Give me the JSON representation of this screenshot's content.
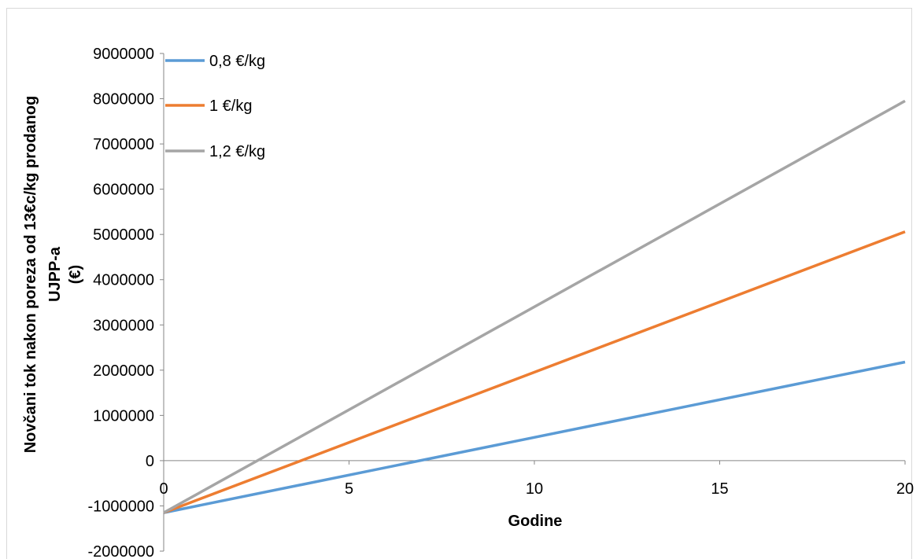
{
  "chart_data": {
    "type": "line",
    "title": "",
    "xlabel": "Godine",
    "ylabel_lines": [
      "Novčani tok nakon poreza od 13€c/kg prodanog",
      "UJPP-a",
      "(€)"
    ],
    "xlim": [
      0,
      20
    ],
    "ylim": [
      -2000000,
      9000000
    ],
    "x_ticks": [
      0,
      5,
      10,
      15,
      20
    ],
    "y_ticks": [
      -2000000,
      -1000000,
      0,
      1000000,
      2000000,
      3000000,
      4000000,
      5000000,
      6000000,
      7000000,
      8000000,
      9000000
    ],
    "grid": false,
    "legend_position": "top-left",
    "series": [
      {
        "name": "0,8 €/kg",
        "color": "#5B9BD5",
        "x": [
          0,
          20
        ],
        "y": [
          -1150000,
          2180000
        ]
      },
      {
        "name": "1 €/kg",
        "color": "#ED7D31",
        "x": [
          0,
          20
        ],
        "y": [
          -1150000,
          5060000
        ]
      },
      {
        "name": "1,2 €/kg",
        "color": "#A5A5A5",
        "x": [
          0,
          20
        ],
        "y": [
          -1150000,
          7950000
        ]
      }
    ]
  }
}
